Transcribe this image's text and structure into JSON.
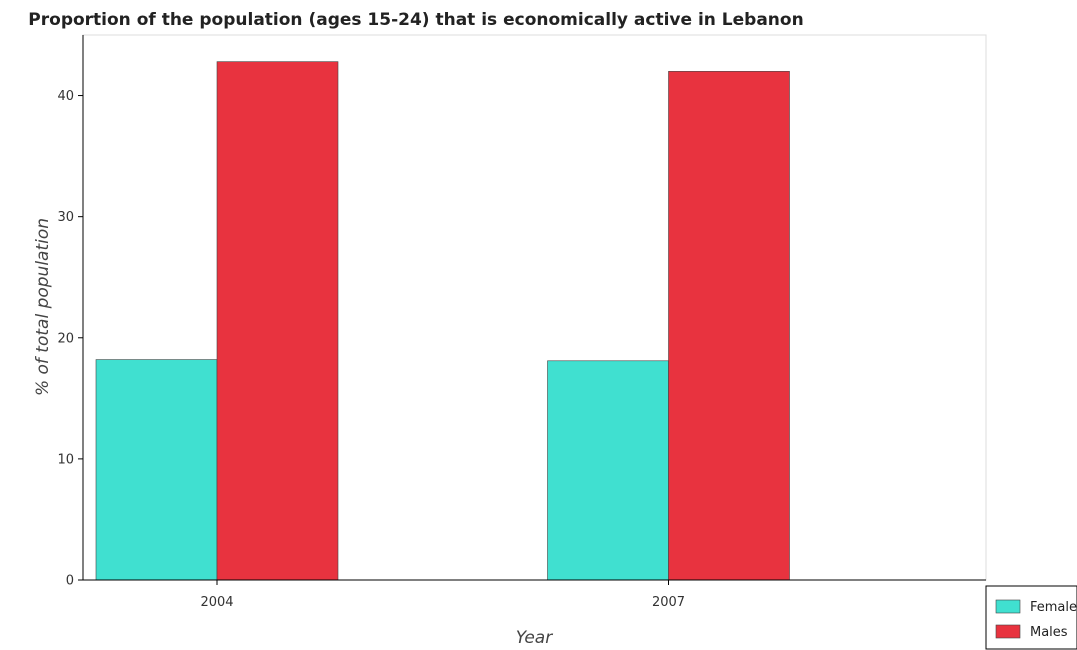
{
  "chart_data": {
    "type": "bar",
    "title": "Proportion of the population (ages 15-24) that is economically active in Lebanon",
    "xlabel": "Year",
    "ylabel": "% of total population",
    "categories": [
      "2004",
      "2007"
    ],
    "series": [
      {
        "name": "Females",
        "values": [
          18.2,
          18.1
        ],
        "color": "#40e0d0"
      },
      {
        "name": "Males",
        "values": [
          42.8,
          42.0
        ],
        "color": "#e8333f"
      }
    ],
    "ylim": [
      0,
      45
    ],
    "yticks": [
      0,
      10,
      20,
      30,
      40
    ],
    "grid": false,
    "legend_position": "bottom-right"
  }
}
